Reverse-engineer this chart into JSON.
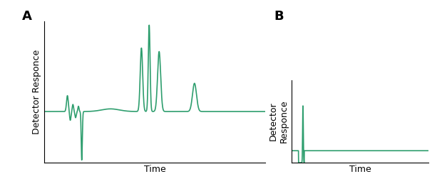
{
  "line_color": "#2e9e6e",
  "line_width": 1.2,
  "background_color": "#ffffff",
  "label_A": "A",
  "label_B": "B",
  "xlabel": "Time",
  "ylabel_A": "Detector Responce",
  "ylabel_B": "Detector\nResponce",
  "axis_label_fontsize": 9,
  "panel_label_fontsize": 13,
  "panel_label_weight": "bold"
}
